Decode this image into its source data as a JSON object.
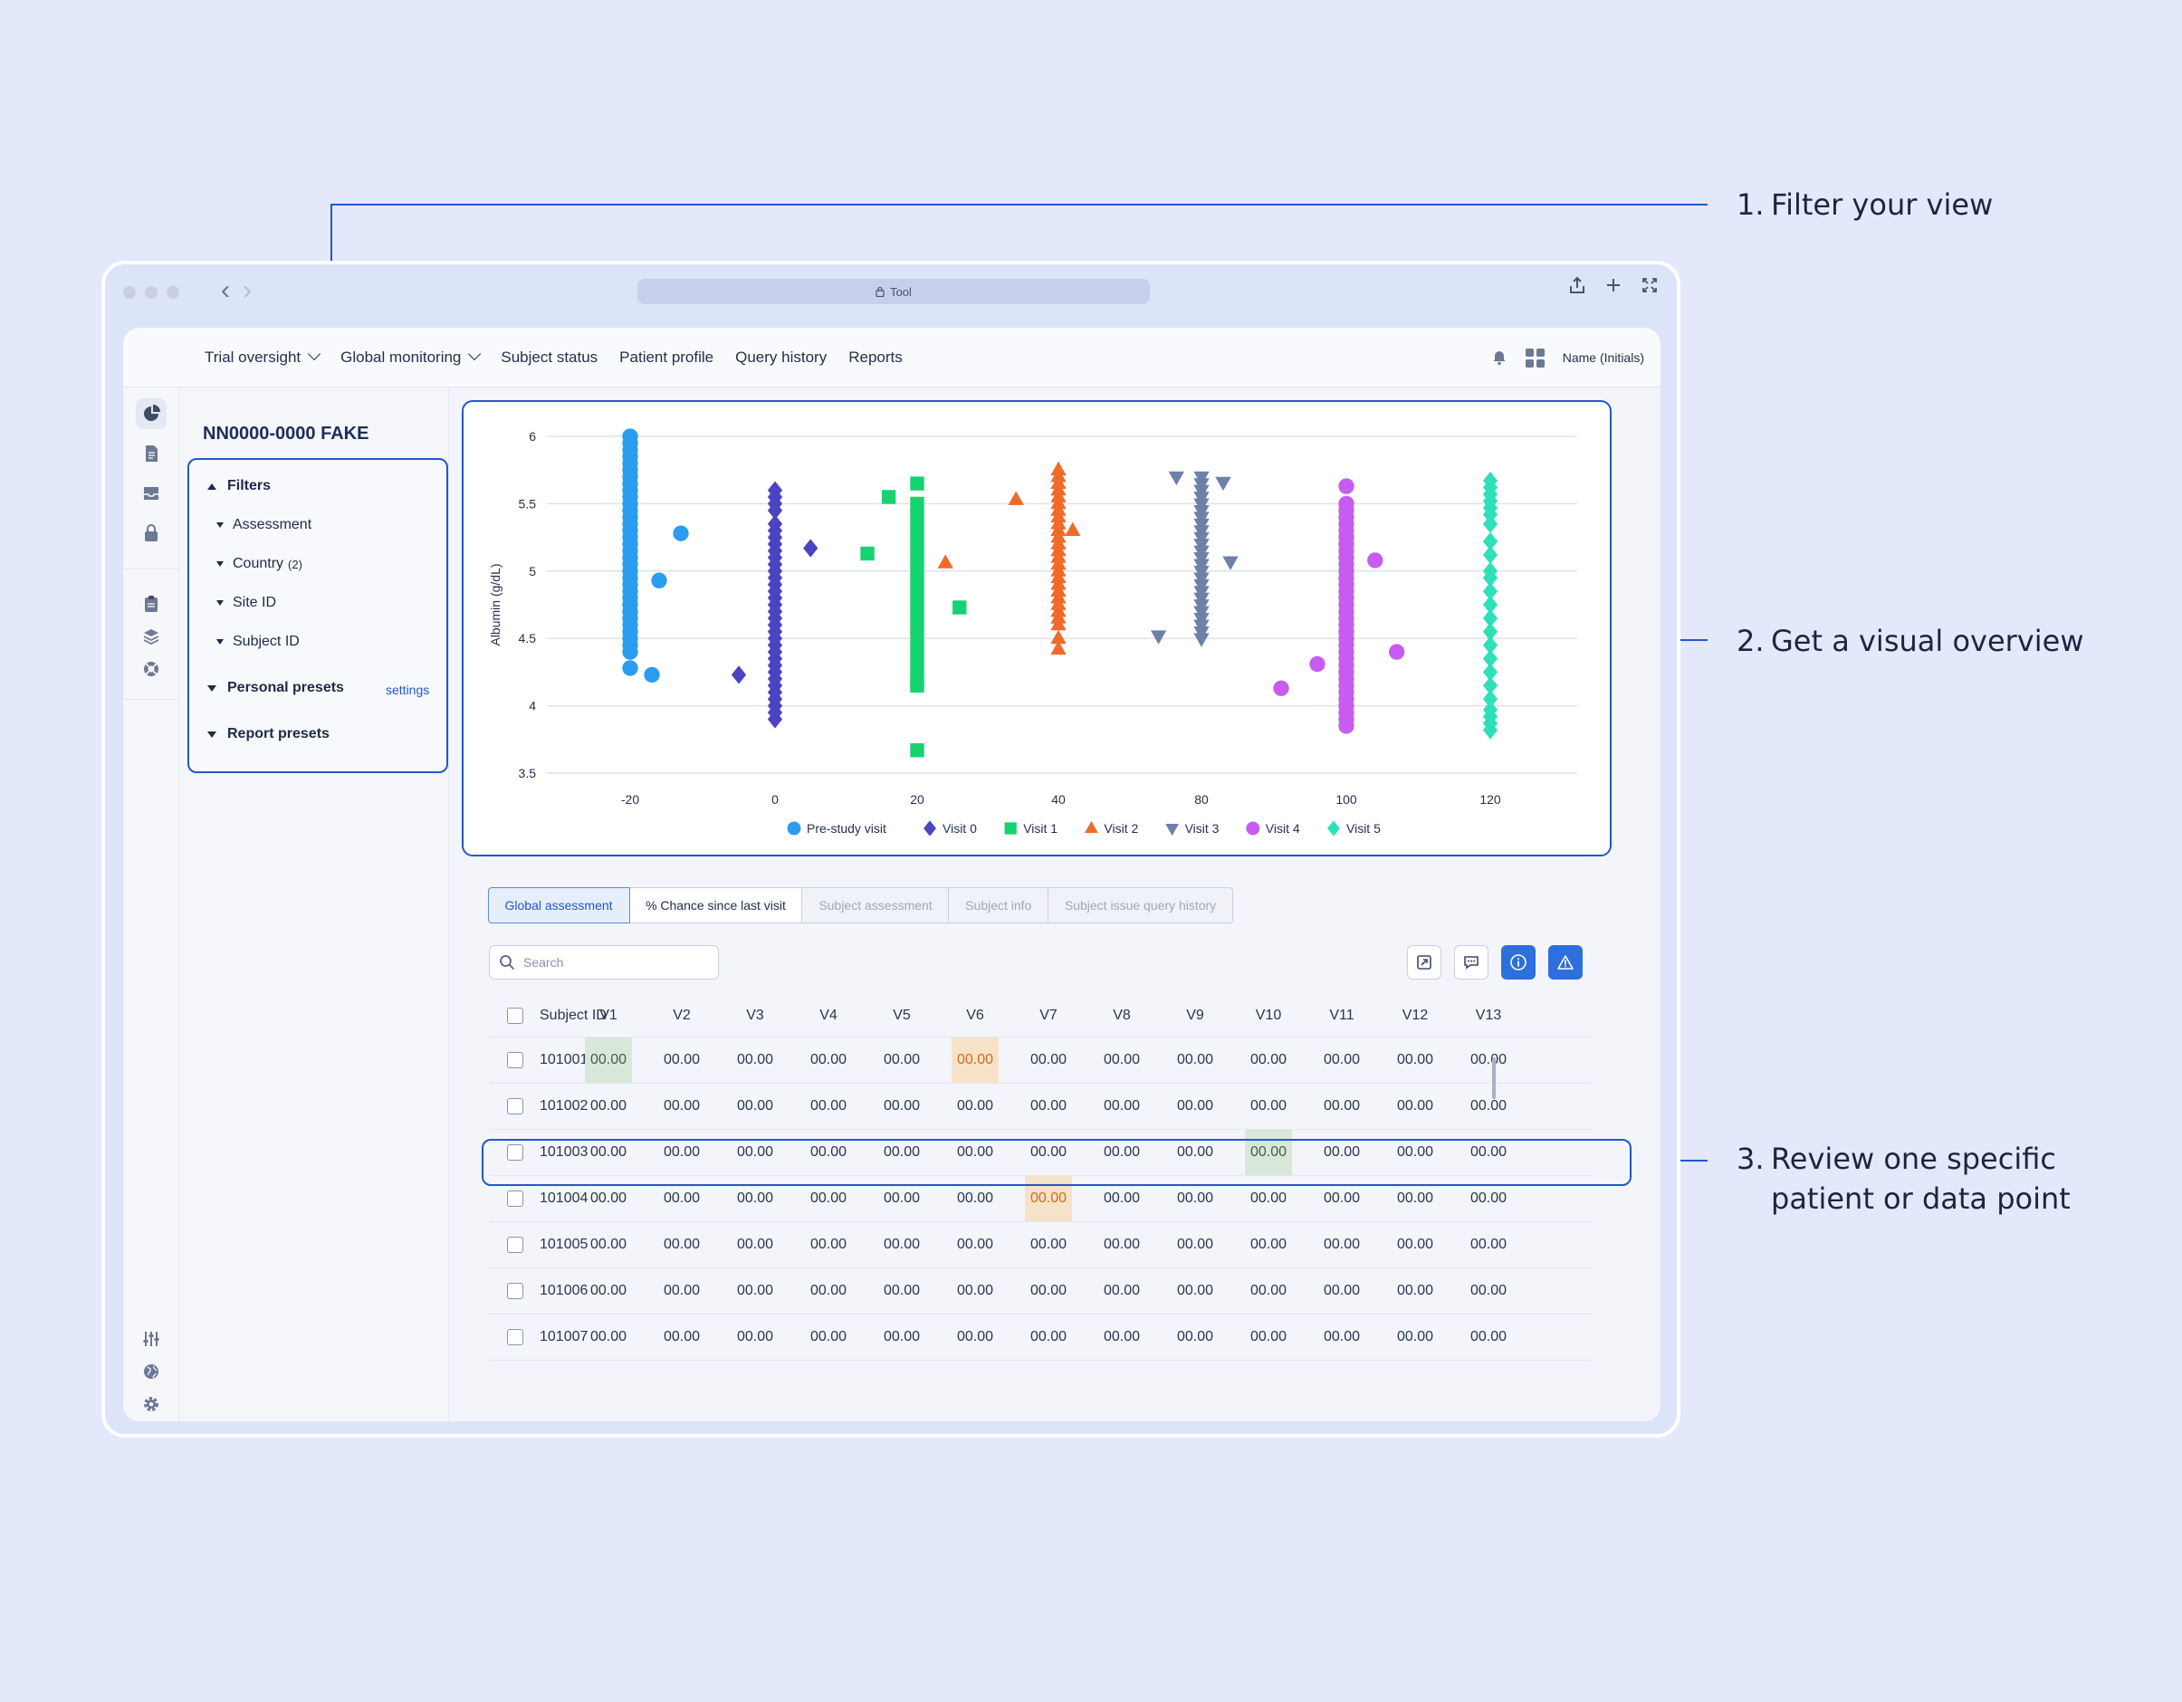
{
  "callouts": [
    {
      "num": "1.",
      "line1": "Filter your view",
      "line2": ""
    },
    {
      "num": "2.",
      "line1": "Get a visual overview",
      "line2": ""
    },
    {
      "num": "3.",
      "line1": "Review one specific",
      "line2": "patient or data point"
    }
  ],
  "browser": {
    "url": "Tool"
  },
  "topnav": {
    "items": [
      "Trial oversight",
      "Global monitoring",
      "Subject status",
      "Patient profile",
      "Query history",
      "Reports"
    ],
    "user": "Name (Initials)"
  },
  "sidebar_icons": [
    "chart-pie-icon",
    "document-icon",
    "inbox-icon",
    "lock-icon",
    "clipboard-icon",
    "layers-icon",
    "lifebuoy-icon",
    "sliders-icon",
    "globe-icon",
    "gear-icon"
  ],
  "filters": {
    "study": "NN0000-0000 FAKE",
    "title": "Filters",
    "items": [
      "Assessment",
      "Country",
      "Site ID",
      "Subject ID"
    ],
    "country_count": "(2)",
    "personal_presets": "Personal presets",
    "settings": "settings",
    "report_presets": "Report presets"
  },
  "chart_data": {
    "type": "scatter",
    "ylabel": "Albumin (g/dL)",
    "xlabel": "",
    "ylim": [
      3.5,
      6
    ],
    "yticks": [
      "3.5",
      "4",
      "4.5",
      "5",
      "5.5",
      "6"
    ],
    "x_categories": [
      "-20",
      "0",
      "20",
      "40",
      "80",
      "100",
      "120"
    ],
    "grid": "horizontal",
    "legend_position": "bottom",
    "series": [
      {
        "name": "Pre-study visit",
        "color": "#2a9df0",
        "marker": "circle",
        "points": [
          [
            -20,
            6.0
          ],
          [
            -20,
            5.95
          ],
          [
            -20,
            5.9
          ],
          [
            -20,
            5.85
          ],
          [
            -20,
            5.8
          ],
          [
            -20,
            5.75
          ],
          [
            -20,
            5.7
          ],
          [
            -20,
            5.65
          ],
          [
            -20,
            5.6
          ],
          [
            -20,
            5.55
          ],
          [
            -20,
            5.5
          ],
          [
            -20,
            5.45
          ],
          [
            -20,
            5.4
          ],
          [
            -20,
            5.35
          ],
          [
            -20,
            5.3
          ],
          [
            -20,
            5.25
          ],
          [
            -20,
            5.2
          ],
          [
            -20,
            5.15
          ],
          [
            -20,
            5.1
          ],
          [
            -20,
            5.05
          ],
          [
            -20,
            5.0
          ],
          [
            -20,
            4.95
          ],
          [
            -20,
            4.9
          ],
          [
            -20,
            4.85
          ],
          [
            -20,
            4.8
          ],
          [
            -20,
            4.75
          ],
          [
            -20,
            4.7
          ],
          [
            -20,
            4.65
          ],
          [
            -20,
            4.6
          ],
          [
            -20,
            4.55
          ],
          [
            -20,
            4.5
          ],
          [
            -20,
            4.45
          ],
          [
            -20,
            4.4
          ],
          [
            -20,
            4.28
          ],
          [
            -16,
            4.93
          ],
          [
            -13,
            5.28
          ],
          [
            -17,
            4.23
          ]
        ]
      },
      {
        "name": "Visit 0",
        "color": "#4b43c2",
        "marker": "diamond",
        "points": [
          [
            -5,
            4.23
          ],
          [
            0,
            5.6
          ],
          [
            0,
            5.55
          ],
          [
            0,
            5.5
          ],
          [
            0,
            5.45
          ],
          [
            0,
            5.35
          ],
          [
            0,
            5.3
          ],
          [
            0,
            5.25
          ],
          [
            0,
            5.2
          ],
          [
            0,
            5.15
          ],
          [
            0,
            5.1
          ],
          [
            0,
            5.05
          ],
          [
            0,
            5.0
          ],
          [
            0,
            4.95
          ],
          [
            0,
            4.9
          ],
          [
            0,
            4.85
          ],
          [
            0,
            4.8
          ],
          [
            0,
            4.75
          ],
          [
            0,
            4.7
          ],
          [
            0,
            4.65
          ],
          [
            0,
            4.6
          ],
          [
            0,
            4.55
          ],
          [
            0,
            4.5
          ],
          [
            0,
            4.45
          ],
          [
            0,
            4.4
          ],
          [
            0,
            4.35
          ],
          [
            0,
            4.3
          ],
          [
            0,
            4.25
          ],
          [
            0,
            4.2
          ],
          [
            0,
            4.15
          ],
          [
            0,
            4.1
          ],
          [
            0,
            4.05
          ],
          [
            0,
            4.0
          ],
          [
            0,
            3.95
          ],
          [
            0,
            3.9
          ],
          [
            5,
            5.17
          ]
        ]
      },
      {
        "name": "Visit 1",
        "color": "#16d36f",
        "marker": "square",
        "points": [
          [
            16,
            5.55
          ],
          [
            13,
            5.13
          ],
          [
            20,
            5.65
          ],
          [
            20,
            5.5
          ],
          [
            20,
            5.4
          ],
          [
            20,
            5.3
          ],
          [
            20,
            5.2
          ],
          [
            20,
            5.1
          ],
          [
            20,
            5.0
          ],
          [
            20,
            4.9
          ],
          [
            20,
            4.8
          ],
          [
            20,
            4.7
          ],
          [
            20,
            4.6
          ],
          [
            20,
            4.5
          ],
          [
            20,
            4.4
          ],
          [
            20,
            4.3
          ],
          [
            20,
            4.2
          ],
          [
            20,
            4.15
          ],
          [
            26,
            4.73
          ],
          [
            20,
            3.67
          ]
        ]
      },
      {
        "name": "Visit 2",
        "color": "#f06a2a",
        "marker": "triangle-up",
        "points": [
          [
            34,
            5.53
          ],
          [
            24,
            5.06
          ],
          [
            40,
            5.75
          ],
          [
            40,
            5.7
          ],
          [
            40,
            5.65
          ],
          [
            40,
            5.6
          ],
          [
            40,
            5.55
          ],
          [
            40,
            5.5
          ],
          [
            40,
            5.45
          ],
          [
            40,
            5.4
          ],
          [
            40,
            5.35
          ],
          [
            40,
            5.3
          ],
          [
            40,
            5.25
          ],
          [
            40,
            5.2
          ],
          [
            40,
            5.15
          ],
          [
            40,
            5.1
          ],
          [
            40,
            5.05
          ],
          [
            40,
            5.0
          ],
          [
            40,
            4.95
          ],
          [
            40,
            4.9
          ],
          [
            40,
            4.85
          ],
          [
            40,
            4.8
          ],
          [
            40,
            4.75
          ],
          [
            40,
            4.7
          ],
          [
            40,
            4.65
          ],
          [
            40,
            4.6
          ],
          [
            40,
            4.5
          ],
          [
            40,
            4.42
          ],
          [
            44,
            5.3
          ]
        ]
      },
      {
        "name": "Visit 3",
        "color": "#6e7fa8",
        "marker": "triangle-down",
        "points": [
          [
            73,
            5.7
          ],
          [
            68,
            4.52
          ],
          [
            80,
            5.7
          ],
          [
            80,
            5.65
          ],
          [
            80,
            5.6
          ],
          [
            80,
            5.55
          ],
          [
            80,
            5.5
          ],
          [
            80,
            5.45
          ],
          [
            80,
            5.4
          ],
          [
            80,
            5.35
          ],
          [
            80,
            5.3
          ],
          [
            80,
            5.25
          ],
          [
            80,
            5.2
          ],
          [
            80,
            5.15
          ],
          [
            80,
            5.1
          ],
          [
            80,
            5.05
          ],
          [
            80,
            5.0
          ],
          [
            80,
            4.95
          ],
          [
            80,
            4.9
          ],
          [
            80,
            4.85
          ],
          [
            80,
            4.8
          ],
          [
            80,
            4.75
          ],
          [
            80,
            4.7
          ],
          [
            80,
            4.65
          ],
          [
            80,
            4.6
          ],
          [
            80,
            4.55
          ],
          [
            80,
            4.5
          ],
          [
            83,
            5.66
          ],
          [
            84,
            5.07
          ]
        ]
      },
      {
        "name": "Visit 4",
        "color": "#c75cf0",
        "marker": "circle",
        "points": [
          [
            100,
            5.63
          ],
          [
            100,
            5.5
          ],
          [
            100,
            5.45
          ],
          [
            100,
            5.4
          ],
          [
            100,
            5.35
          ],
          [
            100,
            5.3
          ],
          [
            100,
            5.25
          ],
          [
            100,
            5.2
          ],
          [
            100,
            5.15
          ],
          [
            100,
            5.1
          ],
          [
            100,
            5.05
          ],
          [
            100,
            5.0
          ],
          [
            100,
            4.95
          ],
          [
            100,
            4.9
          ],
          [
            100,
            4.85
          ],
          [
            100,
            4.8
          ],
          [
            100,
            4.75
          ],
          [
            100,
            4.7
          ],
          [
            100,
            4.65
          ],
          [
            100,
            4.6
          ],
          [
            100,
            4.55
          ],
          [
            100,
            4.5
          ],
          [
            100,
            4.45
          ],
          [
            100,
            4.4
          ],
          [
            100,
            4.35
          ],
          [
            100,
            4.3
          ],
          [
            100,
            4.25
          ],
          [
            100,
            4.2
          ],
          [
            100,
            4.15
          ],
          [
            100,
            4.1
          ],
          [
            100,
            4.05
          ],
          [
            100,
            4.0
          ],
          [
            100,
            3.95
          ],
          [
            100,
            3.9
          ],
          [
            100,
            3.85
          ],
          [
            104,
            5.08
          ],
          [
            107,
            4.4
          ],
          [
            96,
            4.31
          ],
          [
            91,
            4.13
          ]
        ]
      },
      {
        "name": "Visit 5",
        "color": "#2ee0b8",
        "marker": "diamond",
        "points": [
          [
            120,
            5.67
          ],
          [
            120,
            5.62
          ],
          [
            120,
            5.57
          ],
          [
            120,
            5.52
          ],
          [
            120,
            5.47
          ],
          [
            120,
            5.42
          ],
          [
            120,
            5.35
          ],
          [
            120,
            5.22
          ],
          [
            120,
            5.12
          ],
          [
            120,
            5.0
          ],
          [
            120,
            4.95
          ],
          [
            120,
            4.85
          ],
          [
            120,
            4.75
          ],
          [
            120,
            4.65
          ],
          [
            120,
            4.55
          ],
          [
            120,
            4.45
          ],
          [
            120,
            4.35
          ],
          [
            120,
            4.25
          ],
          [
            120,
            4.15
          ],
          [
            120,
            4.05
          ],
          [
            120,
            3.97
          ],
          [
            120,
            3.92
          ],
          [
            120,
            3.87
          ],
          [
            120,
            3.82
          ],
          [
            124,
            5.22
          ]
        ]
      }
    ]
  },
  "tabs": [
    "Global assessment",
    "% Chance since last visit",
    "Subject assessment",
    "Subject info",
    "Subject issue query history"
  ],
  "search": {
    "placeholder": "Search"
  },
  "table": {
    "columns": [
      "Subject ID",
      "V1",
      "V2",
      "V3",
      "V4",
      "V5",
      "V6",
      "V7",
      "V8",
      "V9",
      "V10",
      "V11",
      "V12",
      "V13"
    ],
    "rows": [
      {
        "id": "101001",
        "values": [
          "00.00",
          "00.00",
          "00.00",
          "00.00",
          "00.00",
          "00.00",
          "00.00",
          "00.00",
          "00.00",
          "00.00",
          "00.00",
          "00.00",
          "00.00"
        ],
        "flags": {
          "0": "green",
          "5": "orange"
        }
      },
      {
        "id": "101002",
        "values": [
          "00.00",
          "00.00",
          "00.00",
          "00.00",
          "00.00",
          "00.00",
          "00.00",
          "00.00",
          "00.00",
          "00.00",
          "00.00",
          "00.00",
          "00.00"
        ],
        "flags": {}
      },
      {
        "id": "101003",
        "values": [
          "00.00",
          "00.00",
          "00.00",
          "00.00",
          "00.00",
          "00.00",
          "00.00",
          "00.00",
          "00.00",
          "00.00",
          "00.00",
          "00.00",
          "00.00"
        ],
        "flags": {
          "9": "green"
        }
      },
      {
        "id": "101004",
        "values": [
          "00.00",
          "00.00",
          "00.00",
          "00.00",
          "00.00",
          "00.00",
          "00.00",
          "00.00",
          "00.00",
          "00.00",
          "00.00",
          "00.00",
          "00.00"
        ],
        "flags": {
          "6": "orange"
        }
      },
      {
        "id": "101005",
        "values": [
          "00.00",
          "00.00",
          "00.00",
          "00.00",
          "00.00",
          "00.00",
          "00.00",
          "00.00",
          "00.00",
          "00.00",
          "00.00",
          "00.00",
          "00.00"
        ],
        "flags": {}
      },
      {
        "id": "101006",
        "values": [
          "00.00",
          "00.00",
          "00.00",
          "00.00",
          "00.00",
          "00.00",
          "00.00",
          "00.00",
          "00.00",
          "00.00",
          "00.00",
          "00.00",
          "00.00"
        ],
        "flags": {}
      },
      {
        "id": "101007",
        "values": [
          "00.00",
          "00.00",
          "00.00",
          "00.00",
          "00.00",
          "00.00",
          "00.00",
          "00.00",
          "00.00",
          "00.00",
          "00.00",
          "00.00",
          "00.00"
        ],
        "flags": {}
      }
    ]
  },
  "colors": {
    "accent": "#2158c9",
    "background": "#e3e9fb",
    "green_flag": "#d8e8d8",
    "orange_flag": "#f6e2c8"
  }
}
